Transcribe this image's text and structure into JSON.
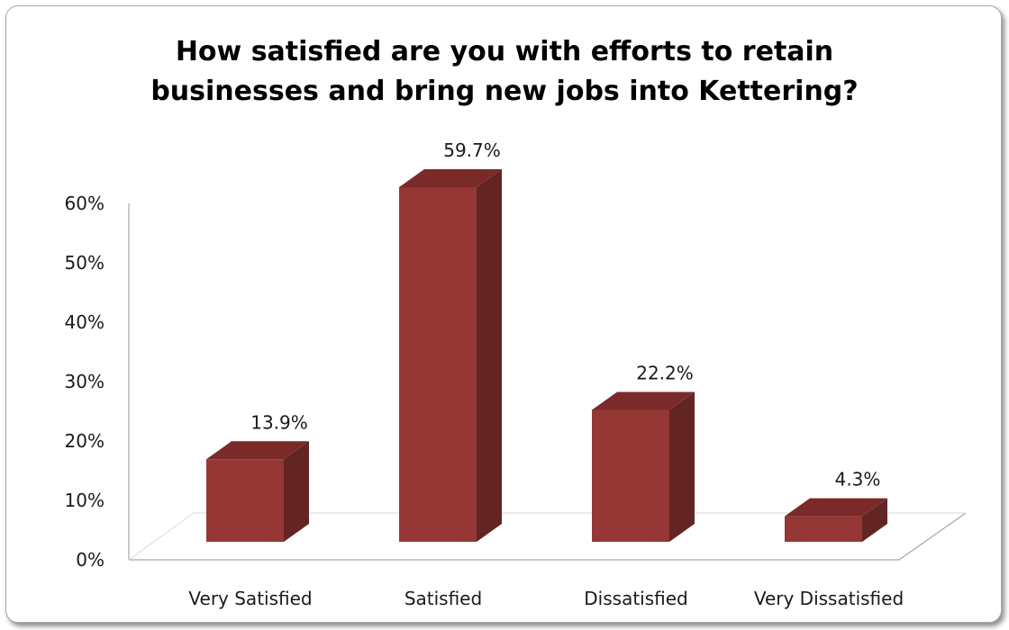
{
  "chart_data": {
    "type": "bar",
    "title": "How satisfied are you with efforts to retain\nbusinesses and bring new jobs into Kettering?",
    "categories": [
      "Very Satisfied",
      "Satisfied",
      "Dissatisfied",
      "Very Dissatisfied"
    ],
    "values": [
      13.9,
      59.7,
      22.2,
      4.3
    ],
    "data_labels": [
      "13.9%",
      "59.7%",
      "22.2%",
      "4.3%"
    ],
    "yticks": [
      "0%",
      "10%",
      "20%",
      "30%",
      "40%",
      "50%",
      "60%"
    ],
    "ylim": [
      0,
      60
    ],
    "grid": false,
    "legend": "none",
    "style": "3d",
    "colors": {
      "bar_front": "#953735",
      "bar_side": "#632523",
      "bar_top": "#7a2b29",
      "axis": "#a6a6a6"
    }
  }
}
